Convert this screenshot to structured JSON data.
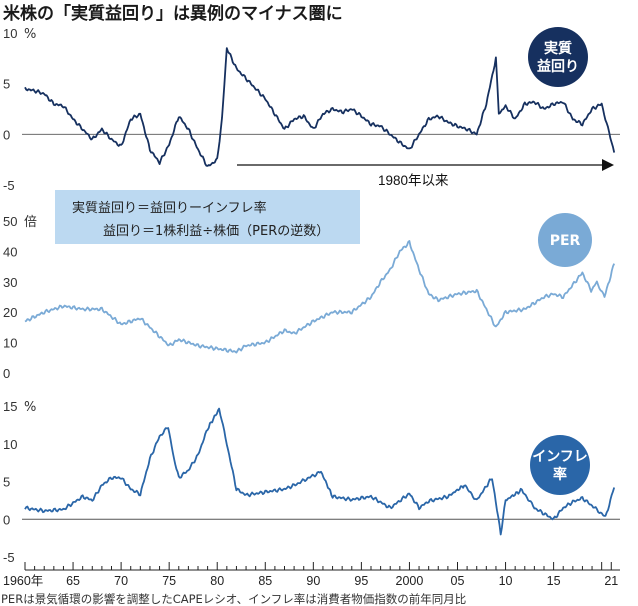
{
  "title": "米株の「実質益回り」は異例のマイナス圏に",
  "footnote": "PERは景気循環の影響を調整したCAPEレシオ、インフレ率は消費者物価指数の前年同月比",
  "note": {
    "line1": "実質益回り＝益回りーインフレ率",
    "line2": "益回り＝1株利益÷株価（PERの逆数）"
  },
  "annotation": "1980年以来",
  "x_tick_labels": [
    "1960年",
    "65",
    "70",
    "75",
    "80",
    "85",
    "90",
    "95",
    "2000",
    "05",
    "10",
    "15",
    "21"
  ],
  "colors": {
    "real_yield": "#16305f",
    "per": "#7aaad6",
    "inflation": "#2a66a8",
    "note_bg": "#bcd9f1",
    "zero_line": "#555555"
  },
  "chart_data": [
    {
      "type": "line",
      "badge": "実質\n益回り",
      "unit": "%",
      "ylim": [
        -5,
        10
      ],
      "yticks": [
        "10",
        "5",
        "0",
        "-5"
      ],
      "x": [
        1960,
        1961,
        1962,
        1963,
        1964,
        1965,
        1966,
        1967,
        1968,
        1969,
        1970,
        1971,
        1972,
        1973,
        1974,
        1975,
        1976,
        1977,
        1978,
        1979,
        1980,
        1980.5,
        1981,
        1982,
        1983,
        1984,
        1985,
        1986,
        1987,
        1988,
        1989,
        1990,
        1991,
        1992,
        1993,
        1994,
        1995,
        1996,
        1997,
        1998,
        1999,
        2000,
        2001,
        2002,
        2003,
        2004,
        2005,
        2006,
        2007,
        2008,
        2009,
        2009.3,
        2010,
        2011,
        2012,
        2013,
        2014,
        2015,
        2016,
        2017,
        2018,
        2019,
        2020,
        2021.3
      ],
      "values": [
        4.5,
        4.3,
        4.0,
        3.0,
        2.8,
        1.5,
        0.5,
        -0.5,
        0.5,
        -0.5,
        -1.2,
        1.5,
        2.0,
        -1.5,
        -2.8,
        -1.0,
        1.8,
        0.5,
        -1.5,
        -3.2,
        -2.5,
        1.5,
        8.5,
        6.5,
        5.5,
        4.5,
        3.5,
        2.0,
        0.5,
        1.5,
        1.8,
        0.5,
        2.0,
        2.5,
        2.2,
        2.5,
        1.8,
        1.0,
        0.8,
        0.0,
        -0.8,
        -1.5,
        0.0,
        1.5,
        1.8,
        1.2,
        0.8,
        0.5,
        0.0,
        3.0,
        7.5,
        2.0,
        2.8,
        1.5,
        3.0,
        3.2,
        2.5,
        3.0,
        3.2,
        1.5,
        1.0,
        2.5,
        3.0,
        -1.8
      ]
    },
    {
      "type": "line",
      "badge": "PER",
      "unit": "倍",
      "ylim": [
        0,
        50
      ],
      "yticks": [
        "50",
        "40",
        "30",
        "20",
        "10",
        "0"
      ],
      "x": [
        1960,
        1962,
        1964,
        1966,
        1968,
        1970,
        1972,
        1974,
        1975,
        1976,
        1978,
        1980,
        1982,
        1983,
        1985,
        1987,
        1988,
        1990,
        1992,
        1994,
        1996,
        1997,
        1998,
        1999,
        2000,
        2001,
        2002,
        2003,
        2005,
        2007,
        2008,
        2009,
        2010,
        2012,
        2014,
        2015,
        2016,
        2018,
        2018.9,
        2019.5,
        2020.3,
        2021.3
      ],
      "values": [
        17,
        20,
        22,
        21,
        21,
        16,
        18,
        12,
        9,
        11,
        9,
        8,
        7,
        9,
        10,
        14,
        13,
        17,
        20,
        20,
        25,
        30,
        34,
        40,
        43,
        34,
        26,
        24,
        26,
        27,
        21,
        15,
        20,
        21,
        25,
        26,
        25,
        33,
        27,
        30,
        25,
        36
      ]
    },
    {
      "type": "line",
      "badge": "インフレ\n率",
      "unit": "%",
      "ylim": [
        -5,
        15
      ],
      "yticks": [
        "15",
        "10",
        "5",
        "0",
        "-5"
      ],
      "x": [
        1960,
        1962,
        1964,
        1966,
        1967,
        1968,
        1969,
        1970,
        1971,
        1972,
        1973,
        1974,
        1974.9,
        1975.5,
        1976,
        1977,
        1978,
        1979,
        1980.2,
        1981,
        1982,
        1983,
        1985,
        1987,
        1988,
        1990.8,
        1992,
        1994,
        1996,
        1998,
        2000,
        2001,
        2002,
        2004,
        2005.7,
        2007,
        2008.6,
        2009.5,
        2010,
        2011.7,
        2013,
        2015,
        2016,
        2017,
        2018,
        2019,
        2020.4,
        2021.3
      ],
      "values": [
        1.5,
        1.1,
        1.3,
        3.0,
        2.5,
        4.5,
        5.5,
        5.5,
        4.0,
        3.3,
        8.0,
        11.0,
        12.2,
        8.0,
        5.5,
        6.5,
        8.5,
        12.0,
        14.6,
        10.0,
        4.0,
        3.2,
        3.6,
        4.0,
        4.5,
        6.3,
        3.0,
        2.6,
        3.0,
        1.5,
        3.4,
        1.5,
        2.4,
        3.0,
        4.5,
        2.5,
        5.5,
        -2.0,
        2.5,
        3.9,
        1.5,
        0.0,
        1.5,
        2.3,
        2.8,
        1.8,
        0.3,
        4.2
      ]
    }
  ]
}
